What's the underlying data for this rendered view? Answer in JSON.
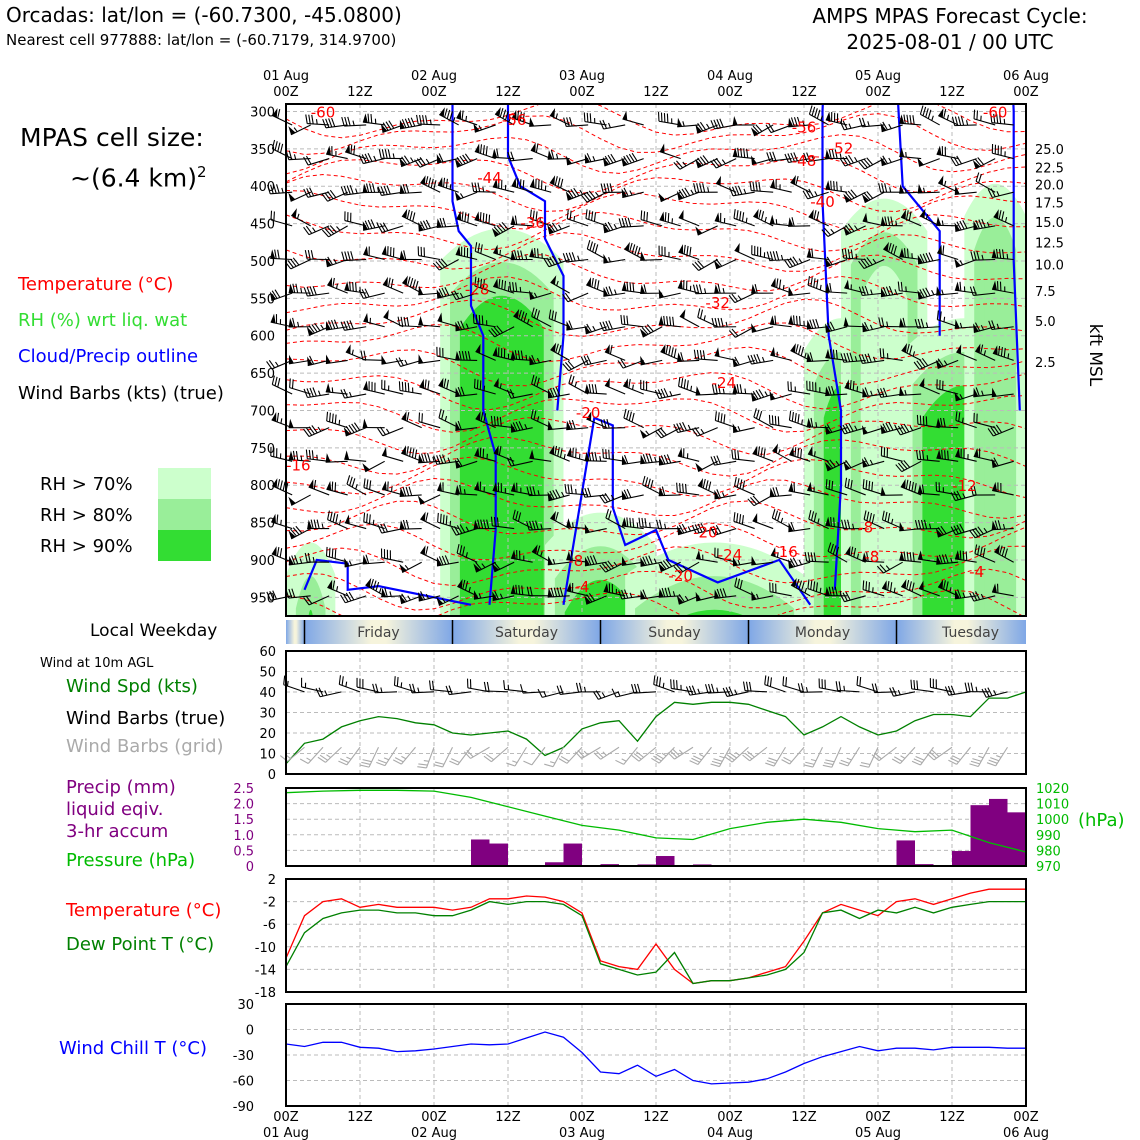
{
  "header": {
    "title_left": "Orcadas: lat/lon = (-60.7300, -45.0800)",
    "subtitle_left": "Nearest cell 977888: lat/lon = (-60.7179, 314.9700)",
    "title_right_1": "AMPS MPAS Forecast Cycle:",
    "title_right_2": "2025-08-01 / 00 UTC"
  },
  "cell_size": {
    "line1": "MPAS cell size:",
    "line2": "~(6.4 km)",
    "sup": "2"
  },
  "legend": {
    "temperature": "Temperature (°C)",
    "rh": "RH (%) wrt liq. wat",
    "cloud": "Cloud/Precip outline",
    "wind": "Wind Barbs (kts) (true)",
    "rh70": "RH > 70%",
    "rh80": "RH > 80%",
    "rh90": "RH > 90%"
  },
  "colors": {
    "temperature": "#ff0000",
    "rh_label": "#33dd33",
    "cloud": "#0000ff",
    "rh70": "#ccffcc",
    "rh80": "#99ee99",
    "rh90": "#33dd33",
    "precip": "#800080",
    "pressure": "#00bb00",
    "dewpoint": "#008000",
    "windchill": "#0000ff",
    "windspd": "#008000",
    "barb_grid": "#aaaaaa"
  },
  "time_axis": {
    "top_date_labels": [
      {
        "h": 0,
        "text": "01 Aug"
      },
      {
        "h": 24,
        "text": "02 Aug"
      },
      {
        "h": 48,
        "text": "03 Aug"
      },
      {
        "h": 72,
        "text": "04 Aug"
      },
      {
        "h": 96,
        "text": "05 Aug"
      },
      {
        "h": 120,
        "text": "06 Aug"
      }
    ],
    "hour_ticks": [
      {
        "h": 0,
        "text": "00Z"
      },
      {
        "h": 12,
        "text": "12Z"
      },
      {
        "h": 24,
        "text": "00Z"
      },
      {
        "h": 36,
        "text": "12Z"
      },
      {
        "h": 48,
        "text": "00Z"
      },
      {
        "h": 60,
        "text": "12Z"
      },
      {
        "h": 72,
        "text": "00Z"
      },
      {
        "h": 84,
        "text": "12Z"
      },
      {
        "h": 96,
        "text": "00Z"
      },
      {
        "h": 108,
        "text": "12Z"
      },
      {
        "h": 120,
        "text": "00Z"
      }
    ],
    "weekday_label": "Local Weekday",
    "weekdays": [
      "Friday",
      "Saturday",
      "Sunday",
      "Monday",
      "Tuesday"
    ],
    "weekday_boundaries_h": [
      3,
      27,
      51,
      75,
      99
    ]
  },
  "chart_data": [
    {
      "id": "cross_section",
      "type": "heatmap",
      "x_range_hours": [
        0,
        120
      ],
      "y_label_right": "kft MSL",
      "pressure_ticks": [
        300,
        350,
        400,
        450,
        500,
        550,
        600,
        650,
        700,
        750,
        800,
        850,
        900,
        950
      ],
      "pressure_range": [
        290,
        975
      ],
      "kft_ticks": [
        {
          "p": 350,
          "text": "25.0"
        },
        {
          "p": 375,
          "text": "22.5"
        },
        {
          "p": 398,
          "text": "20.0"
        },
        {
          "p": 422,
          "text": "17.5"
        },
        {
          "p": 448,
          "text": "15.0"
        },
        {
          "p": 475,
          "text": "12.5"
        },
        {
          "p": 505,
          "text": "10.0"
        },
        {
          "p": 540,
          "text": "7.5"
        },
        {
          "p": 580,
          "text": "5.0"
        },
        {
          "p": 635,
          "text": "2.5"
        }
      ],
      "temperature_labels": [
        {
          "h": 6,
          "p": 300,
          "text": "-60"
        },
        {
          "h": 37,
          "p": 310,
          "text": "-56"
        },
        {
          "h": 84,
          "p": 320,
          "text": "-56"
        },
        {
          "h": 90,
          "p": 348,
          "text": "-52"
        },
        {
          "h": 84,
          "p": 365,
          "text": "-48"
        },
        {
          "h": 33,
          "p": 388,
          "text": "-44"
        },
        {
          "h": 87,
          "p": 420,
          "text": "-40"
        },
        {
          "h": 40,
          "p": 448,
          "text": "-36"
        },
        {
          "h": 70,
          "p": 555,
          "text": "-32"
        },
        {
          "h": 31,
          "p": 537,
          "text": "-28"
        },
        {
          "h": 71,
          "p": 662,
          "text": "-24"
        },
        {
          "h": 49,
          "p": 702,
          "text": "-20"
        },
        {
          "h": 2,
          "p": 772,
          "text": "-16"
        },
        {
          "h": 110,
          "p": 800,
          "text": "-12"
        },
        {
          "h": 47,
          "p": 900,
          "text": "-8"
        },
        {
          "h": 48,
          "p": 935,
          "text": "-4"
        },
        {
          "h": 68,
          "p": 862,
          "text": "-20"
        },
        {
          "h": 72,
          "p": 892,
          "text": "-24"
        },
        {
          "h": 81,
          "p": 888,
          "text": "-16"
        },
        {
          "h": 94,
          "p": 855,
          "text": "-8"
        },
        {
          "h": 95,
          "p": 895,
          "text": "-8"
        },
        {
          "h": 112,
          "p": 915,
          "text": "-4"
        },
        {
          "h": 64,
          "p": 920,
          "text": "-20"
        },
        {
          "h": 115,
          "p": 300,
          "text": "-60"
        }
      ],
      "barb_rows_p": [
        310,
        355,
        400,
        445,
        490,
        535,
        580,
        625,
        670,
        715,
        760,
        805,
        850,
        895,
        940
      ]
    },
    {
      "id": "wind10m",
      "type": "line",
      "title": "Wind at 10m AGL",
      "labels": [
        "Wind Spd (kts)",
        "Wind Barbs (true)",
        "Wind Barbs (grid)"
      ],
      "ylim": [
        0,
        60
      ],
      "yticks": [
        0,
        10,
        20,
        30,
        40,
        50,
        60
      ],
      "x": [
        0,
        3,
        6,
        9,
        12,
        15,
        18,
        21,
        24,
        27,
        30,
        33,
        36,
        39,
        42,
        45,
        48,
        51,
        54,
        57,
        60,
        63,
        66,
        69,
        72,
        75,
        78,
        81,
        84,
        87,
        90,
        93,
        96,
        99,
        102,
        105,
        108,
        111,
        114,
        117,
        120
      ],
      "values": [
        5,
        15,
        17,
        23,
        26,
        28,
        27,
        25,
        24,
        20,
        19,
        20,
        21,
        17,
        9,
        13,
        22,
        25,
        26,
        16,
        28,
        35,
        34,
        35,
        35,
        34,
        31,
        28,
        19,
        23,
        28,
        23,
        19,
        21,
        26,
        29,
        29,
        28,
        37,
        37,
        40
      ],
      "barbs_true_y": 43,
      "barbs_grid_y": 15
    },
    {
      "id": "precip_pressure",
      "type": "bar",
      "labels": [
        "Precip (mm)",
        "liquid eqiv.",
        "3-hr accum",
        "Pressure (hPa)"
      ],
      "precip_ylim": [
        0,
        2.5
      ],
      "precip_yticks": [
        "0",
        "0.5",
        "1.0",
        "1.5",
        "2.0",
        "2.5"
      ],
      "precip_bars": [
        {
          "h": 33,
          "v": 0.85
        },
        {
          "h": 36,
          "v": 0.72
        },
        {
          "h": 45,
          "v": 0.12
        },
        {
          "h": 48,
          "v": 0.72
        },
        {
          "h": 54,
          "v": 0.06
        },
        {
          "h": 60,
          "v": 0.05
        },
        {
          "h": 63,
          "v": 0.32
        },
        {
          "h": 69,
          "v": 0.05
        },
        {
          "h": 102,
          "v": 0.82
        },
        {
          "h": 105,
          "v": 0.06
        },
        {
          "h": 111,
          "v": 0.48
        },
        {
          "h": 114,
          "v": 1.95
        },
        {
          "h": 117,
          "v": 2.15
        },
        {
          "h": 120,
          "v": 1.72
        }
      ],
      "pressure_ylim": [
        970,
        1020
      ],
      "pressure_yticks": [
        "970",
        "980",
        "990",
        "1000",
        "1010",
        "1020"
      ],
      "pressure_unit": "(hPa)",
      "pressure_x": [
        0,
        6,
        12,
        18,
        24,
        30,
        36,
        42,
        48,
        54,
        60,
        66,
        72,
        78,
        84,
        90,
        96,
        102,
        108,
        114,
        120
      ],
      "pressure_values": [
        1017,
        1018,
        1018.5,
        1018.5,
        1018,
        1014,
        1008,
        1002,
        996,
        993,
        988,
        987,
        994,
        998,
        1000,
        998,
        994,
        992,
        993,
        985,
        979
      ]
    },
    {
      "id": "temp_dew",
      "type": "line",
      "labels": [
        "Temperature (°C)",
        "Dew Point T (°C)"
      ],
      "ylim": [
        -18,
        2
      ],
      "yticks": [
        "2",
        "-2",
        "-6",
        "-10",
        "-14",
        "-18"
      ],
      "x": [
        0,
        3,
        6,
        9,
        12,
        15,
        18,
        21,
        24,
        27,
        30,
        33,
        36,
        39,
        42,
        45,
        48,
        51,
        54,
        57,
        60,
        63,
        66,
        69,
        72,
        75,
        78,
        81,
        84,
        87,
        90,
        93,
        96,
        99,
        102,
        105,
        108,
        111,
        114,
        117,
        120
      ],
      "temperature": [
        -12,
        -4.5,
        -2,
        -1.5,
        -3,
        -2.5,
        -3,
        -3,
        -3,
        -3.5,
        -3,
        -1.5,
        -1.5,
        -1,
        -1.2,
        -2,
        -4,
        -12.5,
        -13.5,
        -14,
        -9.5,
        -14,
        -16.5,
        -16,
        -16,
        -15.5,
        -14.5,
        -13.5,
        -9,
        -4,
        -2.5,
        -3.5,
        -4.5,
        -2,
        -1.5,
        -2.5,
        -1.5,
        -0.5,
        0.2,
        0.2,
        0.2
      ],
      "dewpoint": [
        -13.5,
        -7.5,
        -5,
        -4,
        -3.5,
        -3.5,
        -4,
        -4,
        -4.5,
        -4.5,
        -3.5,
        -2,
        -2.5,
        -2,
        -2,
        -2.5,
        -4.5,
        -13,
        -14,
        -15,
        -14.5,
        -11,
        -16.5,
        -16,
        -16,
        -15.5,
        -15,
        -14,
        -11,
        -4,
        -3.5,
        -5,
        -3.5,
        -4,
        -3,
        -4,
        -3,
        -2.5,
        -2,
        -2,
        -2
      ]
    },
    {
      "id": "windchill",
      "type": "line",
      "labels": [
        "Wind Chill T (°C)"
      ],
      "ylim": [
        -90,
        30
      ],
      "yticks": [
        "30",
        "0",
        "-30",
        "-60",
        "-90"
      ],
      "x": [
        0,
        3,
        6,
        9,
        12,
        15,
        18,
        21,
        24,
        27,
        30,
        33,
        36,
        39,
        42,
        45,
        48,
        51,
        54,
        57,
        60,
        63,
        66,
        69,
        72,
        75,
        78,
        81,
        84,
        87,
        90,
        93,
        96,
        99,
        102,
        105,
        108,
        111,
        114,
        117,
        120
      ],
      "values": [
        -17,
        -20,
        -15,
        -15,
        -21,
        -22,
        -26,
        -25,
        -23,
        -20,
        -17,
        -18,
        -17,
        -10,
        -3,
        -9,
        -27,
        -50,
        -52,
        -42,
        -55,
        -47,
        -60,
        -64,
        -63,
        -62,
        -58,
        -50,
        -40,
        -32,
        -26,
        -20,
        -25,
        -22,
        -22,
        -24,
        -21,
        -21,
        -21,
        -22,
        -22
      ]
    }
  ]
}
